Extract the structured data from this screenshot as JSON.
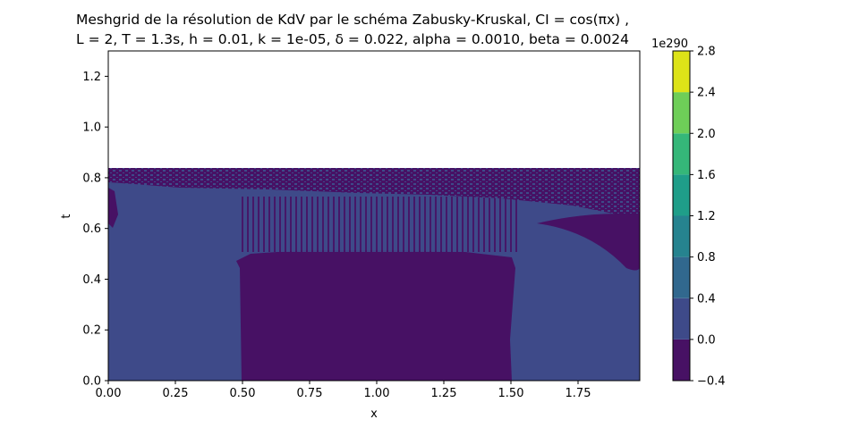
{
  "chart_data": {
    "type": "heatmap",
    "title_line1": "Meshgrid de la résolution de KdV par le schéma Zabusky-Kruskal, CI = cos(πx) ,",
    "title_line2": "L = 2, T = 1.3s, h = 0.01, k = 1e-05, δ = 0.022,  alpha = 0.0010, beta = 0.0024",
    "xlabel": "x",
    "ylabel": "t",
    "xlim": [
      0,
      1.98
    ],
    "ylim": [
      0,
      1.3
    ],
    "x_ticks": [
      "0.00",
      "0.25",
      "0.50",
      "0.75",
      "1.00",
      "1.25",
      "1.50",
      "1.75"
    ],
    "x_tick_values": [
      0,
      0.25,
      0.5,
      0.75,
      1.0,
      1.25,
      1.5,
      1.75
    ],
    "y_ticks": [
      "0.0",
      "0.2",
      "0.4",
      "0.6",
      "0.8",
      "1.0",
      "1.2"
    ],
    "y_tick_values": [
      0,
      0.2,
      0.4,
      0.6,
      0.8,
      1.0,
      1.2
    ],
    "data_t_max": 0.84,
    "colorbar": {
      "exponent_label": "1e290",
      "tick_labels": [
        "−0.4",
        "0.0",
        "0.4",
        "0.8",
        "1.2",
        "1.6",
        "2.0",
        "2.4",
        "2.8"
      ],
      "levels": [
        -0.4,
        0.0,
        0.4,
        0.8,
        1.2,
        1.6,
        2.0,
        2.4,
        2.8
      ],
      "colors": [
        "#471164",
        "#3e4a89",
        "#31688e",
        "#26838f",
        "#1f9e89",
        "#35b779",
        "#6ece58",
        "#b5de2b"
      ],
      "top_color": "#dde318"
    },
    "regions": [
      {
        "x": [
          0.0,
          0.5
        ],
        "t": [
          0,
          0.84
        ],
        "level": "0.0 to 0.4"
      },
      {
        "x": [
          0.5,
          1.5
        ],
        "t": [
          0,
          0.5
        ],
        "level": "-0.4 to 0.0"
      },
      {
        "x": [
          1.5,
          1.98
        ],
        "t": [
          0,
          0.84
        ],
        "level": "0.0 to 0.4"
      }
    ]
  }
}
